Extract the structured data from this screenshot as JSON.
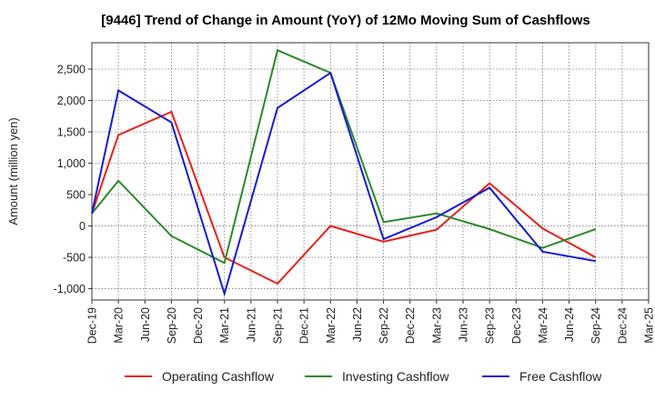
{
  "chart_data": {
    "type": "line",
    "title": "[9446]  Trend of Change in Amount (YoY) of 12Mo Moving Sum of Cashflows",
    "xlabel": "",
    "ylabel": "Amount (million yen)",
    "categories": [
      "Dec-19",
      "Mar-20",
      "Jun-20",
      "Sep-20",
      "Dec-20",
      "Mar-21",
      "Jun-21",
      "Sep-21",
      "Dec-21",
      "Mar-22",
      "Jun-22",
      "Sep-22",
      "Dec-22",
      "Mar-23",
      "Jun-23",
      "Sep-23",
      "Dec-23",
      "Mar-24",
      "Jun-24",
      "Sep-24",
      "Dec-24",
      "Mar-25"
    ],
    "ylim": [
      -1180,
      2920
    ],
    "yticks": [
      -1000,
      -500,
      0,
      500,
      1000,
      1500,
      2000,
      2500
    ],
    "ytick_labels": [
      "-1,000",
      "-500",
      "0",
      "500",
      "1,000",
      "1,500",
      "2,000",
      "2,500"
    ],
    "grid": true,
    "legend_position": "bottom",
    "series": [
      {
        "name": "Operating Cashflow",
        "color": "#e8201a",
        "points": [
          {
            "x": "Dec-19",
            "y": 200
          },
          {
            "x": "Mar-20",
            "y": 1450
          },
          {
            "x": "Sep-20",
            "y": 1820
          },
          {
            "x": "Mar-21",
            "y": -500
          },
          {
            "x": "Sep-21",
            "y": -920
          },
          {
            "x": "Mar-22",
            "y": 0
          },
          {
            "x": "Sep-22",
            "y": -250
          },
          {
            "x": "Mar-23",
            "y": -60
          },
          {
            "x": "Sep-23",
            "y": 680
          },
          {
            "x": "Mar-24",
            "y": -40
          },
          {
            "x": "Sep-24",
            "y": -500
          }
        ]
      },
      {
        "name": "Investing Cashflow",
        "color": "#2a8a2a",
        "points": [
          {
            "x": "Dec-19",
            "y": 200
          },
          {
            "x": "Mar-20",
            "y": 720
          },
          {
            "x": "Sep-20",
            "y": -160
          },
          {
            "x": "Mar-21",
            "y": -590
          },
          {
            "x": "Sep-21",
            "y": 2800
          },
          {
            "x": "Mar-22",
            "y": 2440
          },
          {
            "x": "Sep-22",
            "y": 60
          },
          {
            "x": "Mar-23",
            "y": 200
          },
          {
            "x": "Sep-23",
            "y": -50
          },
          {
            "x": "Mar-24",
            "y": -350
          },
          {
            "x": "Sep-24",
            "y": -50
          }
        ]
      },
      {
        "name": "Free Cashflow",
        "color": "#1a1ad0",
        "points": [
          {
            "x": "Dec-19",
            "y": 200
          },
          {
            "x": "Mar-20",
            "y": 2160
          },
          {
            "x": "Sep-20",
            "y": 1650
          },
          {
            "x": "Mar-21",
            "y": -1080
          },
          {
            "x": "Sep-21",
            "y": 1880
          },
          {
            "x": "Mar-22",
            "y": 2440
          },
          {
            "x": "Sep-22",
            "y": -210
          },
          {
            "x": "Mar-23",
            "y": 140
          },
          {
            "x": "Sep-23",
            "y": 610
          },
          {
            "x": "Mar-24",
            "y": -410
          },
          {
            "x": "Sep-24",
            "y": -560
          }
        ]
      }
    ]
  }
}
